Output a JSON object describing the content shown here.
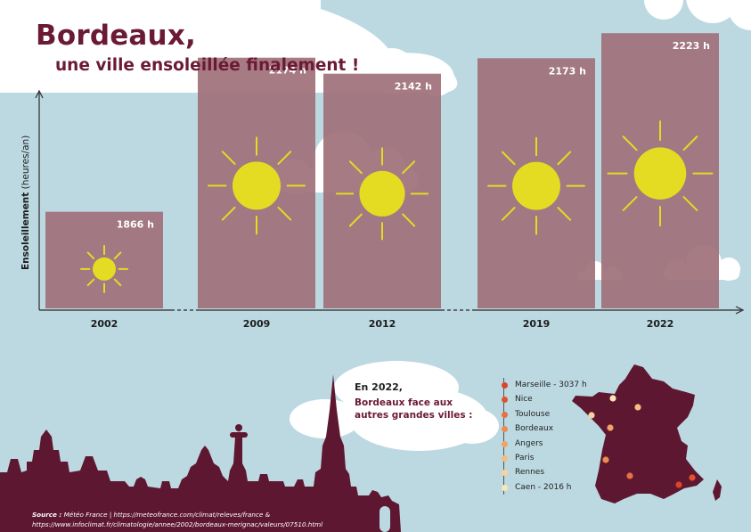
{
  "header": {
    "title": "Bordeaux,",
    "subtitle": "une ville ensoleillée finalement !"
  },
  "colors": {
    "background": "#bcd9e2",
    "bar": "#a0707a",
    "sun": "#e3dc22",
    "accent": "#6b1a36",
    "skyline": "#5e1730",
    "cloud": "#ffffff"
  },
  "chart_data": {
    "type": "bar",
    "categories": [
      "2002",
      "2009",
      "2012",
      "2019",
      "2022"
    ],
    "values": [
      1866,
      2174,
      2142,
      2173,
      2223
    ],
    "value_labels": [
      "1866  h",
      "2174  h",
      "2142  h",
      "2173  h",
      "2223  h"
    ],
    "ylabel_bold": "Ensoleillement",
    "ylabel_rest": " (heures/an)",
    "grid": false,
    "axis_breaks": [
      "2002-2009",
      "2012-2019"
    ]
  },
  "callout": {
    "title": "En 2022,",
    "text": "Bordeaux face  aux autres grandes villes :"
  },
  "legend": {
    "items": [
      {
        "label": "Marseille - 3037 h",
        "color": "#d8462a"
      },
      {
        "label": "Nice",
        "color": "#e0522e"
      },
      {
        "label": "Toulouse",
        "color": "#e87043"
      },
      {
        "label": "Bordeaux",
        "color": "#ec8c52"
      },
      {
        "label": "Angers",
        "color": "#f0a468"
      },
      {
        "label": "Paris",
        "color": "#f4bd82"
      },
      {
        "label": "Rennes",
        "color": "#f7d29e"
      },
      {
        "label": "Caen  - 2016 h",
        "color": "#f8e6b8"
      }
    ]
  },
  "source": {
    "label": "Source :",
    "line1": " Météo France | https://meteofrance.com/climat/releves/france &",
    "line2": "https://www.infoclimat.fr/climatologie/annee/2002/bordeaux-merignac/valeurs/07510.html"
  }
}
